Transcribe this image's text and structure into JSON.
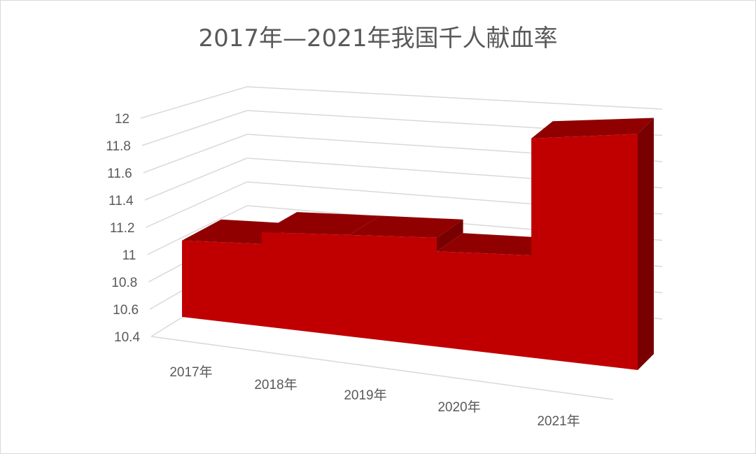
{
  "chart_data": {
    "type": "area",
    "style": "3d-area",
    "title": "2017年—2021年我国千人献血率",
    "categories": [
      "2017年",
      "2018年",
      "2019年",
      "2020年",
      "2021年"
    ],
    "series": [
      {
        "values": [
          11.1,
          11.2,
          11.2,
          11.1,
          11.9
        ]
      }
    ],
    "ylim": [
      10.4,
      12
    ],
    "yticks": [
      "10.4",
      "10.6",
      "10.8",
      "11",
      "11.2",
      "11.4",
      "11.6",
      "11.8",
      "12"
    ],
    "grid": true,
    "legend": "none",
    "colors": {
      "front": "#C00000",
      "top": "#900000",
      "side": "#780000",
      "grid": "#D9D9D9",
      "text": "#595959"
    }
  }
}
